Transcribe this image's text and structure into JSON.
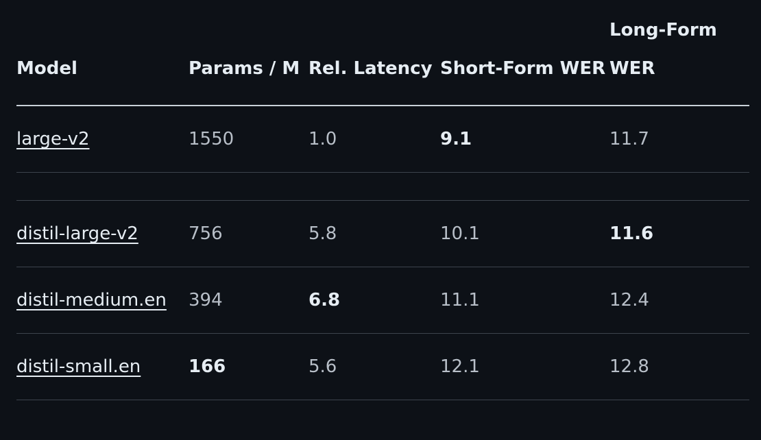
{
  "table": {
    "headers": {
      "model": "Model",
      "params": "Params / M",
      "latency": "Rel. Latency",
      "short_wer": "Short-Form WER",
      "long_wer": "Long-Form WER"
    },
    "rows": [
      {
        "model": "large-v2",
        "params": "1550",
        "latency": "1.0",
        "short_wer": "9.1",
        "long_wer": "11.7",
        "bold": [
          "short_wer"
        ]
      },
      {
        "model": "distil-large-v2",
        "params": "756",
        "latency": "5.8",
        "short_wer": "10.1",
        "long_wer": "11.6",
        "bold": [
          "long_wer"
        ]
      },
      {
        "model": "distil-medium.en",
        "params": "394",
        "latency": "6.8",
        "short_wer": "11.1",
        "long_wer": "12.4",
        "bold": [
          "latency"
        ]
      },
      {
        "model": "distil-small.en",
        "params": "166",
        "latency": "5.6",
        "short_wer": "12.1",
        "long_wer": "12.8",
        "bold": [
          "params"
        ]
      }
    ]
  }
}
